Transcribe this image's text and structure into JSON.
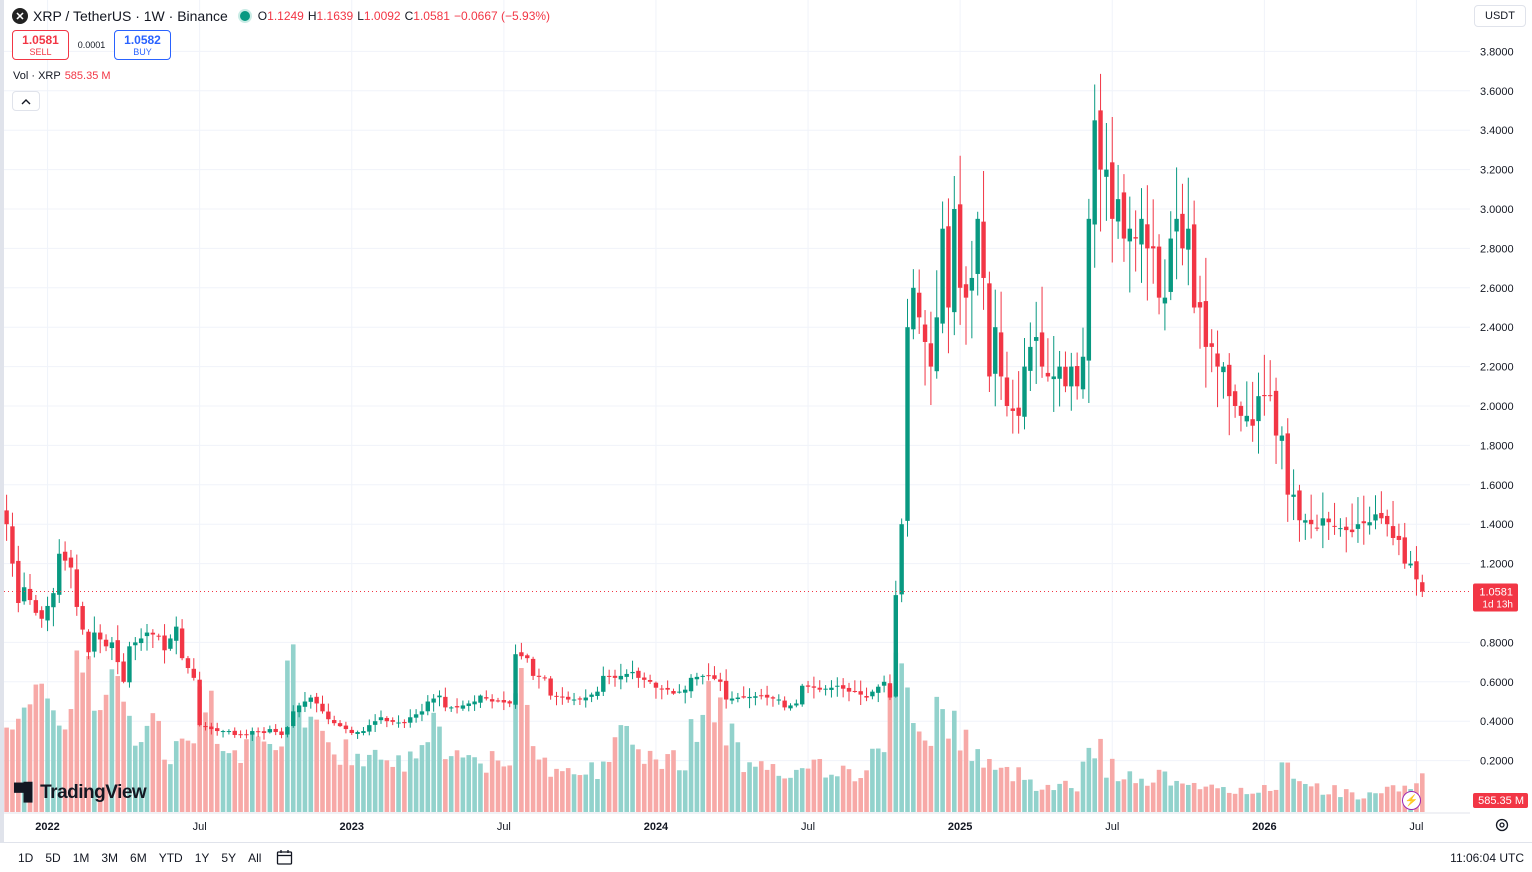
{
  "header": {
    "symbol_icon": "x-logo-icon",
    "title": "XRP / TetherUS · 1W · Binance",
    "open_label": "O",
    "open": "1.1249",
    "high_label": "H",
    "high": "1.1639",
    "low_label": "L",
    "low": "1.0092",
    "close_label": "C",
    "close": "1.0581",
    "change": "−0.0667 (−5.93%)",
    "status_color": "#089981"
  },
  "trade": {
    "sell_price": "1.0581",
    "sell_label": "SELL",
    "spread": "0.0001",
    "buy_price": "1.0582",
    "buy_label": "BUY"
  },
  "volume_legend": {
    "name": "Vol · XRP",
    "value": "585.35 M"
  },
  "currency": "USDT",
  "brand": "TradingView",
  "bottom": {
    "ranges": [
      "1D",
      "5D",
      "1M",
      "3M",
      "6M",
      "YTD",
      "1Y",
      "5Y",
      "All"
    ],
    "clock": "11:06:04 UTC"
  },
  "colors": {
    "up": "#089981",
    "down": "#f23645",
    "vol_up": "#92d2cc",
    "vol_down": "#f7a9a7",
    "last_price_bg": "#f23645",
    "grid": "#f0f3fa"
  },
  "chart_data": {
    "type": "candlestick",
    "title": "XRP / TetherUS · 1W · Binance",
    "interval": "1W",
    "y_axis": {
      "min": 0,
      "max": 3.9,
      "position": "right",
      "ticks": [
        "3.8000",
        "3.6000",
        "3.4000",
        "3.2000",
        "3.0000",
        "2.8000",
        "2.6000",
        "2.4000",
        "2.2000",
        "2.0000",
        "1.8000",
        "1.6000",
        "1.4000",
        "1.2000",
        "0.8000",
        "0.6000",
        "0.4000",
        "0.2000"
      ]
    },
    "x_axis": {
      "ticks": [
        {
          "label": "2022",
          "week": 7,
          "bold": true
        },
        {
          "label": "Jul",
          "week": 33,
          "bold": false
        },
        {
          "label": "2023",
          "week": 59,
          "bold": true
        },
        {
          "label": "Jul",
          "week": 85,
          "bold": false
        },
        {
          "label": "2024",
          "week": 111,
          "bold": true
        },
        {
          "label": "Jul",
          "week": 137,
          "bold": false
        },
        {
          "label": "2025",
          "week": 163,
          "bold": true
        },
        {
          "label": "Jul",
          "week": 189,
          "bold": false
        },
        {
          "label": "2026",
          "week": 215,
          "bold": true
        },
        {
          "label": "Jul",
          "week": 241,
          "bold": false
        }
      ]
    },
    "last_price": {
      "value": 1.0581,
      "label": "1.0581",
      "countdown": "1d 13h"
    },
    "volume_label": "585.35 M",
    "volume_max_millions": 900,
    "anchors": [
      [
        0,
        1.4,
        1.0,
        0.95
      ],
      [
        3,
        1.08,
        0.95,
        0.95
      ],
      [
        6,
        0.92,
        1.05,
        0.95
      ],
      [
        9,
        1.25,
        1.18,
        0.95
      ],
      [
        12,
        0.98,
        0.75,
        1.3
      ],
      [
        15,
        0.85,
        0.78,
        0.95
      ],
      [
        18,
        0.8,
        0.6,
        1.1
      ],
      [
        21,
        0.78,
        0.82,
        0.8
      ],
      [
        24,
        0.85,
        0.83,
        0.75
      ],
      [
        27,
        0.76,
        0.88,
        0.55
      ],
      [
        30,
        0.72,
        0.62,
        0.75
      ],
      [
        33,
        0.38,
        0.36,
        1.2
      ],
      [
        36,
        0.35,
        0.35,
        0.7
      ],
      [
        39,
        0.33,
        0.33,
        0.55
      ],
      [
        42,
        0.35,
        0.34,
        0.6
      ],
      [
        45,
        0.36,
        0.33,
        0.5
      ],
      [
        48,
        0.37,
        0.45,
        1.4
      ],
      [
        50,
        0.48,
        0.52,
        1.0
      ],
      [
        53,
        0.49,
        0.41,
        0.8
      ],
      [
        56,
        0.39,
        0.36,
        0.55
      ],
      [
        59,
        0.34,
        0.35,
        0.45
      ],
      [
        62,
        0.38,
        0.42,
        0.6
      ],
      [
        65,
        0.4,
        0.39,
        0.45
      ],
      [
        69,
        0.42,
        0.45,
        0.6
      ],
      [
        72,
        0.5,
        0.53,
        0.8
      ],
      [
        75,
        0.47,
        0.47,
        0.55
      ],
      [
        78,
        0.48,
        0.5,
        0.5
      ],
      [
        81,
        0.53,
        0.5,
        0.45
      ],
      [
        84,
        0.5,
        0.49,
        0.4
      ],
      [
        87,
        0.74,
        0.72,
        1.2
      ],
      [
        90,
        0.63,
        0.62,
        0.6
      ],
      [
        93,
        0.53,
        0.52,
        0.4
      ],
      [
        96,
        0.51,
        0.51,
        0.35
      ],
      [
        99,
        0.52,
        0.55,
        0.4
      ],
      [
        102,
        0.63,
        0.62,
        0.6
      ],
      [
        105,
        0.63,
        0.65,
        0.65
      ],
      [
        108,
        0.62,
        0.6,
        0.55
      ],
      [
        111,
        0.57,
        0.56,
        0.45
      ],
      [
        114,
        0.54,
        0.56,
        0.5
      ],
      [
        117,
        0.62,
        0.63,
        0.8
      ],
      [
        120,
        0.63,
        0.6,
        1.0
      ],
      [
        123,
        0.51,
        0.52,
        0.7
      ],
      [
        126,
        0.52,
        0.53,
        0.4
      ],
      [
        130,
        0.52,
        0.51,
        0.35
      ],
      [
        133,
        0.47,
        0.49,
        0.35
      ],
      [
        136,
        0.58,
        0.57,
        0.5
      ],
      [
        139,
        0.56,
        0.57,
        0.4
      ],
      [
        142,
        0.58,
        0.55,
        0.35
      ],
      [
        145,
        0.55,
        0.52,
        0.35
      ],
      [
        148,
        0.55,
        0.6,
        0.5
      ],
      [
        151,
        0.52,
        1.04,
        1.4
      ],
      [
        152,
        1.04,
        1.4,
        1.7
      ],
      [
        153,
        1.4,
        2.2,
        1.4
      ],
      [
        154,
        2.4,
        2.6,
        1.0
      ],
      [
        156,
        2.45,
        2.2,
        0.7
      ],
      [
        159,
        2.45,
        2.9,
        0.9
      ],
      [
        161,
        2.5,
        3.0,
        0.8
      ],
      [
        163,
        2.6,
        2.55,
        0.7
      ],
      [
        165,
        2.65,
        2.95,
        0.55
      ],
      [
        167,
        2.65,
        2.15,
        0.45
      ],
      [
        169,
        2.4,
        2.15,
        0.35
      ],
      [
        171,
        2.0,
        1.95,
        0.35
      ],
      [
        174,
        2.2,
        2.3,
        0.3
      ],
      [
        176,
        2.35,
        2.2,
        0.25
      ],
      [
        178,
        2.15,
        2.15,
        0.25
      ],
      [
        180,
        2.2,
        2.1,
        0.25
      ],
      [
        182,
        2.2,
        2.1,
        0.2
      ],
      [
        184,
        2.25,
        2.95,
        0.6
      ],
      [
        186,
        3.45,
        3.2,
        0.55
      ],
      [
        188,
        3.2,
        2.95,
        0.4
      ],
      [
        190,
        3.05,
        2.85,
        0.35
      ],
      [
        192,
        2.9,
        2.85,
        0.3
      ],
      [
        194,
        2.95,
        2.8,
        0.3
      ],
      [
        196,
        2.8,
        2.55,
        0.35
      ],
      [
        198,
        2.55,
        2.85,
        0.3
      ],
      [
        200,
        2.95,
        2.8,
        0.3
      ],
      [
        202,
        2.9,
        2.5,
        0.3
      ],
      [
        204,
        2.5,
        2.3,
        0.2
      ],
      [
        206,
        2.3,
        2.2,
        0.2
      ],
      [
        208,
        2.2,
        2.05,
        0.2
      ],
      [
        210,
        2.0,
        1.95,
        0.2
      ],
      [
        212,
        1.95,
        1.9,
        0.15
      ],
      [
        214,
        2.05,
        2.05,
        0.2
      ],
      [
        216,
        2.05,
        1.85,
        0.25
      ],
      [
        218,
        1.85,
        1.55,
        0.4
      ],
      [
        220,
        1.55,
        1.42,
        0.25
      ],
      [
        222,
        1.42,
        1.38,
        0.25
      ],
      [
        225,
        1.43,
        1.39,
        0.2
      ],
      [
        228,
        1.38,
        1.36,
        0.18
      ],
      [
        231,
        1.4,
        1.41,
        0.15
      ],
      [
        234,
        1.45,
        1.43,
        0.15
      ],
      [
        236,
        1.4,
        1.33,
        0.2
      ],
      [
        238,
        1.32,
        1.2,
        0.2
      ],
      [
        240,
        1.2,
        1.12,
        0.25
      ],
      [
        242,
        1.12,
        1.0581,
        0.3
      ]
    ]
  }
}
